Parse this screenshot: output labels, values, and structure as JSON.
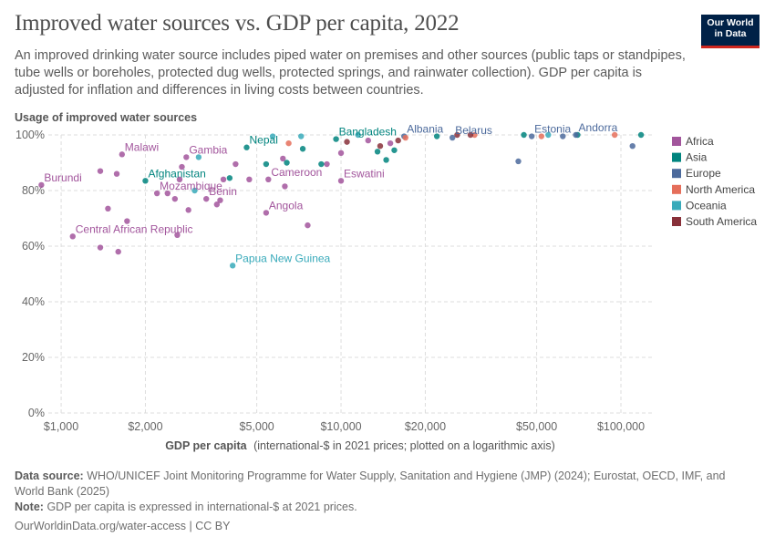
{
  "header": {
    "title": "Improved water sources vs. GDP per capita, 2022",
    "subtitle": "An improved drinking water source includes piped water on premises and other sources (public taps or standpipes, tube wells or boreholes, protected dug wells, protected springs, and rainwater collection). GDP per capita is adjusted for inflation and differences in living costs between countries.",
    "logo_line1": "Our World",
    "logo_line2": "in Data"
  },
  "footer": {
    "source_label": "Data source:",
    "source_text": "WHO/UNICEF Joint Monitoring Programme for Water Supply, Sanitation and Hygiene (JMP) (2024); Eurostat, OECD, IMF, and World Bank (2025)",
    "note_label": "Note:",
    "note_text": "GDP per capita is expressed in international-$ at 2021 prices.",
    "link_text": "OurWorldinData.org/water-access",
    "license": "| CC BY"
  },
  "chart_data": {
    "type": "scatter",
    "title": "Improved water sources vs. GDP per capita, 2022",
    "ylabel": "Usage of improved water sources",
    "xlabel": "GDP per capita",
    "xlabel_note": "(international-$ in 2021 prices; plotted on a logarithmic axis)",
    "x_scale": "log",
    "xlim": [
      900,
      130000
    ],
    "ylim": [
      0,
      100
    ],
    "x_ticks": [
      1000,
      2000,
      5000,
      10000,
      20000,
      50000,
      100000
    ],
    "x_tick_labels": [
      "$1,000",
      "$2,000",
      "$5,000",
      "$10,000",
      "$20,000",
      "$50,000",
      "$100,000"
    ],
    "y_ticks": [
      0,
      20,
      40,
      60,
      80,
      100
    ],
    "y_tick_labels": [
      "0%",
      "20%",
      "40%",
      "60%",
      "80%",
      "100%"
    ],
    "grid": true,
    "legend_position": "right",
    "colors": {
      "Africa": "#a2559c",
      "Asia": "#00847e",
      "Europe": "#4c6a9c",
      "North America": "#e56e5a",
      "Oceania": "#38aaba",
      "South America": "#883039"
    },
    "legend": [
      "Africa",
      "Asia",
      "Europe",
      "North America",
      "Oceania",
      "South America"
    ],
    "points": [
      {
        "region": "Africa",
        "x": 850,
        "y": 82,
        "label": "Burundi"
      },
      {
        "region": "Africa",
        "x": 1100,
        "y": 63.5,
        "label": "Central African Republic"
      },
      {
        "region": "Africa",
        "x": 1380,
        "y": 59.5
      },
      {
        "region": "Africa",
        "x": 1380,
        "y": 87
      },
      {
        "region": "Africa",
        "x": 1470,
        "y": 73.5
      },
      {
        "region": "Africa",
        "x": 1580,
        "y": 86
      },
      {
        "region": "Africa",
        "x": 1600,
        "y": 58
      },
      {
        "region": "Africa",
        "x": 1650,
        "y": 93,
        "label": "Malawi"
      },
      {
        "region": "Africa",
        "x": 1720,
        "y": 69
      },
      {
        "region": "Africa",
        "x": 2200,
        "y": 79,
        "label": "Mozambique"
      },
      {
        "region": "Africa",
        "x": 2400,
        "y": 79
      },
      {
        "region": "Africa",
        "x": 2550,
        "y": 77
      },
      {
        "region": "Africa",
        "x": 2600,
        "y": 64
      },
      {
        "region": "Africa",
        "x": 2650,
        "y": 84
      },
      {
        "region": "Africa",
        "x": 2700,
        "y": 88.5
      },
      {
        "region": "Africa",
        "x": 2800,
        "y": 92,
        "label": "Gambia"
      },
      {
        "region": "Africa",
        "x": 2850,
        "y": 73
      },
      {
        "region": "Africa",
        "x": 3300,
        "y": 77,
        "label": "Benin"
      },
      {
        "region": "Africa",
        "x": 3600,
        "y": 75
      },
      {
        "region": "Africa",
        "x": 3700,
        "y": 76.5
      },
      {
        "region": "Africa",
        "x": 3800,
        "y": 84
      },
      {
        "region": "Africa",
        "x": 4200,
        "y": 89.5
      },
      {
        "region": "Africa",
        "x": 4700,
        "y": 84
      },
      {
        "region": "Africa",
        "x": 5400,
        "y": 72,
        "label": "Angola"
      },
      {
        "region": "Africa",
        "x": 5500,
        "y": 84,
        "label": "Cameroon"
      },
      {
        "region": "Africa",
        "x": 6200,
        "y": 91.5
      },
      {
        "region": "Africa",
        "x": 6300,
        "y": 81.5
      },
      {
        "region": "Africa",
        "x": 7600,
        "y": 67.5
      },
      {
        "region": "Africa",
        "x": 8900,
        "y": 89.5
      },
      {
        "region": "Africa",
        "x": 10000,
        "y": 83.5,
        "label": "Eswatini"
      },
      {
        "region": "Africa",
        "x": 10000,
        "y": 93.5
      },
      {
        "region": "Africa",
        "x": 12500,
        "y": 98
      },
      {
        "region": "Africa",
        "x": 15000,
        "y": 97
      },
      {
        "region": "Asia",
        "x": 2000,
        "y": 83.5,
        "label": "Afghanistan"
      },
      {
        "region": "Asia",
        "x": 4000,
        "y": 84.5
      },
      {
        "region": "Asia",
        "x": 4600,
        "y": 95.5,
        "label": "Nepal"
      },
      {
        "region": "Asia",
        "x": 5400,
        "y": 89.5
      },
      {
        "region": "Asia",
        "x": 6400,
        "y": 90
      },
      {
        "region": "Asia",
        "x": 7300,
        "y": 95
      },
      {
        "region": "Asia",
        "x": 8500,
        "y": 89.5
      },
      {
        "region": "Asia",
        "x": 9600,
        "y": 98.5,
        "label": "Bangladesh"
      },
      {
        "region": "Asia",
        "x": 13500,
        "y": 94
      },
      {
        "region": "Asia",
        "x": 14500,
        "y": 91
      },
      {
        "region": "Asia",
        "x": 15500,
        "y": 94.5
      },
      {
        "region": "Asia",
        "x": 22000,
        "y": 99.5
      },
      {
        "region": "Asia",
        "x": 45000,
        "y": 100
      },
      {
        "region": "Asia",
        "x": 70000,
        "y": 100
      },
      {
        "region": "Asia",
        "x": 118000,
        "y": 100
      },
      {
        "region": "Europe",
        "x": 16800,
        "y": 99.5,
        "label": "Albania"
      },
      {
        "region": "Europe",
        "x": 25000,
        "y": 99,
        "label": "Belarus"
      },
      {
        "region": "Europe",
        "x": 43000,
        "y": 90.5
      },
      {
        "region": "Europe",
        "x": 48000,
        "y": 99.5,
        "label": "Estonia"
      },
      {
        "region": "Europe",
        "x": 62000,
        "y": 99.5
      },
      {
        "region": "Europe",
        "x": 69000,
        "y": 100,
        "label": "Andorra"
      },
      {
        "region": "Europe",
        "x": 110000,
        "y": 96
      },
      {
        "region": "North America",
        "x": 6500,
        "y": 97
      },
      {
        "region": "North America",
        "x": 17000,
        "y": 99
      },
      {
        "region": "North America",
        "x": 30000,
        "y": 100
      },
      {
        "region": "North America",
        "x": 52000,
        "y": 99.5
      },
      {
        "region": "North America",
        "x": 95000,
        "y": 100
      },
      {
        "region": "Oceania",
        "x": 3000,
        "y": 80
      },
      {
        "region": "Oceania",
        "x": 3100,
        "y": 92
      },
      {
        "region": "Oceania",
        "x": 4100,
        "y": 53,
        "label": "Papua New Guinea"
      },
      {
        "region": "Oceania",
        "x": 5700,
        "y": 99.5
      },
      {
        "region": "Oceania",
        "x": 7200,
        "y": 99.5
      },
      {
        "region": "Oceania",
        "x": 11500,
        "y": 100
      },
      {
        "region": "Oceania",
        "x": 55000,
        "y": 100
      },
      {
        "region": "South America",
        "x": 10500,
        "y": 97.5
      },
      {
        "region": "South America",
        "x": 13800,
        "y": 96
      },
      {
        "region": "South America",
        "x": 16000,
        "y": 98
      },
      {
        "region": "South America",
        "x": 26000,
        "y": 100
      },
      {
        "region": "South America",
        "x": 29000,
        "y": 100
      }
    ]
  }
}
